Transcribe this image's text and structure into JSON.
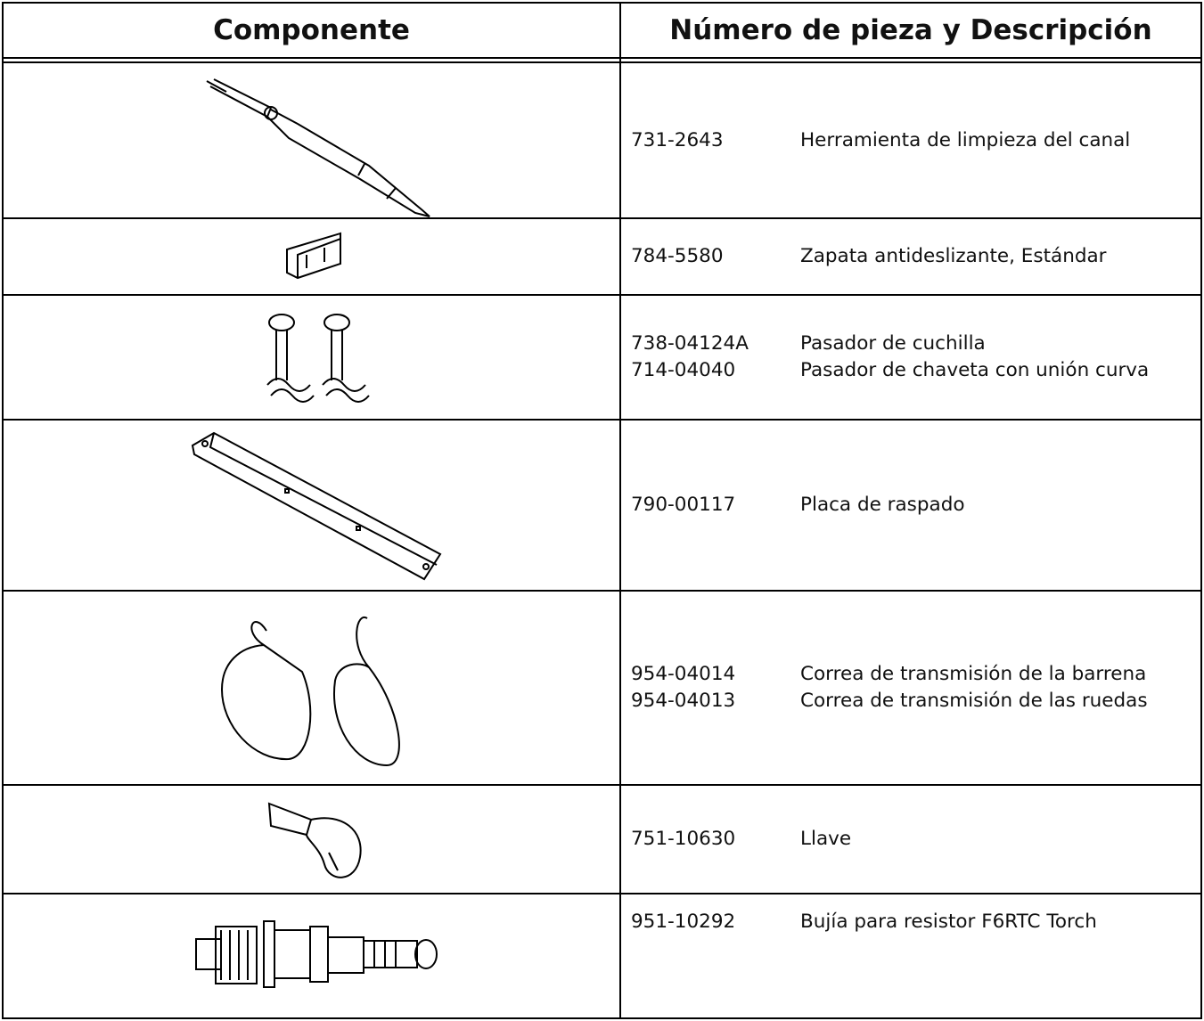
{
  "header": {
    "component": "Componente",
    "part": "Número de pieza y Descripción"
  },
  "rows": [
    {
      "parts": [
        {
          "number": "731-2643",
          "description": "Herramienta de limpieza del canal"
        }
      ]
    },
    {
      "parts": [
        {
          "number": "784-5580",
          "description": "Zapata antideslizante, Estándar"
        }
      ]
    },
    {
      "parts": [
        {
          "number": "738-04124A",
          "description": "Pasador de cuchilla"
        },
        {
          "number": "714-04040",
          "description": "Pasador de chaveta con unión curva"
        }
      ]
    },
    {
      "parts": [
        {
          "number": "790-00117",
          "description": "Placa de raspado"
        }
      ]
    },
    {
      "parts": [
        {
          "number": "954-04014",
          "description": "Correa de transmisión de la barrena"
        },
        {
          "number": "954-04013",
          "description": "Correa de transmisión de las ruedas"
        }
      ]
    },
    {
      "parts": [
        {
          "number": "751-10630",
          "description": "Llave"
        }
      ]
    },
    {
      "parts": [
        {
          "number": "951-10292",
          "description": "Bujía para resistor F6RTC Torch"
        }
      ]
    }
  ]
}
